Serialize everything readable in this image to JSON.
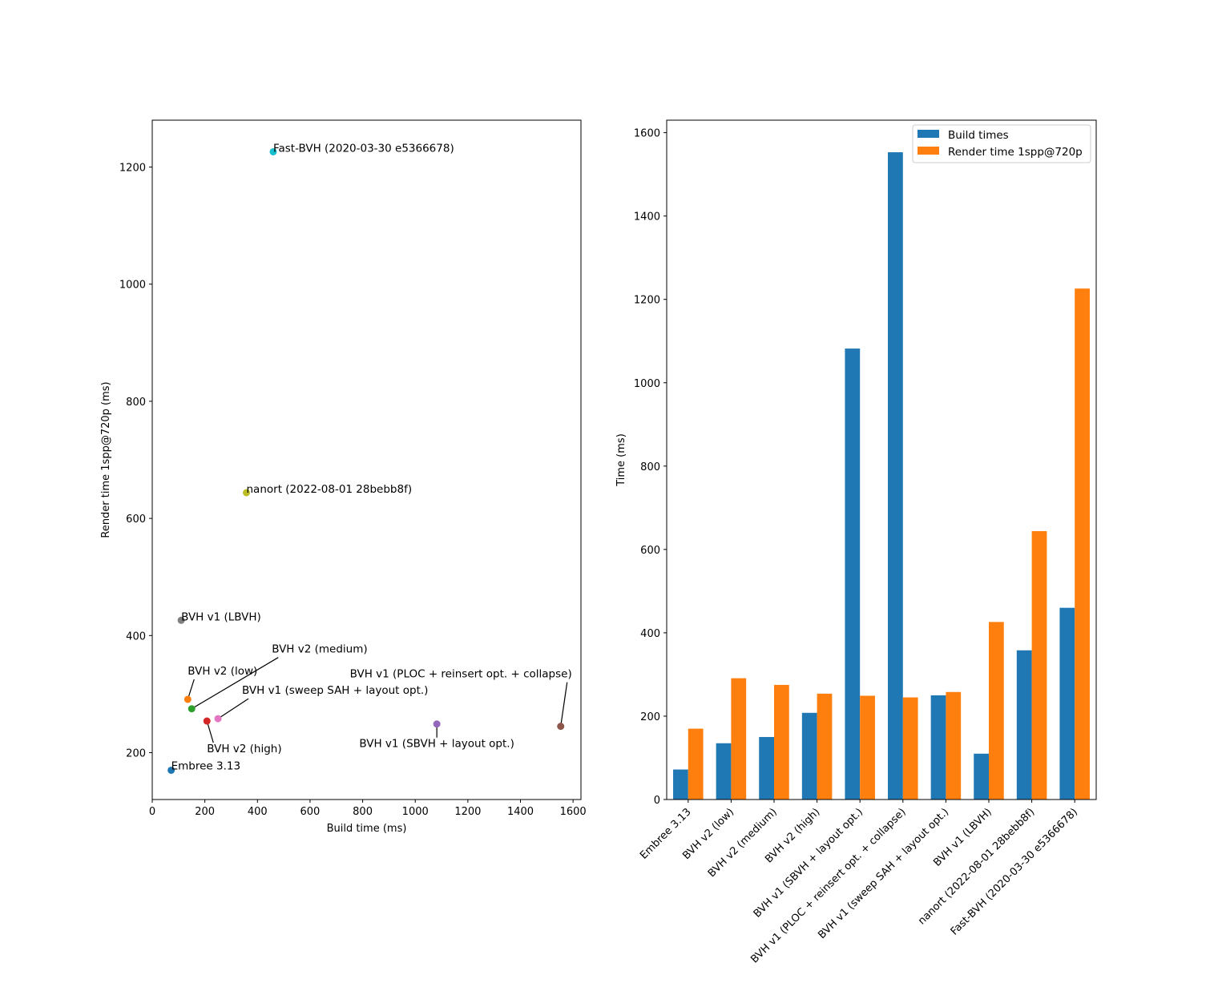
{
  "chart_data": [
    {
      "type": "scatter",
      "title": "",
      "xlabel": "Build time (ms)",
      "ylabel": "Render time 1spp@720p (ms)",
      "xlim": [
        0,
        1630
      ],
      "ylim": [
        120,
        1280
      ],
      "xticks": [
        0,
        200,
        400,
        600,
        800,
        1000,
        1200,
        1400,
        1600
      ],
      "yticks": [
        200,
        400,
        600,
        800,
        1000,
        1200
      ],
      "points": [
        {
          "name": "Embree 3.13",
          "x": 72,
          "y": 170,
          "color": "#1f77b4"
        },
        {
          "name": "BVH v2 (low)",
          "x": 135,
          "y": 291,
          "color": "#ff7f0e"
        },
        {
          "name": "BVH v2 (medium)",
          "x": 150,
          "y": 275,
          "color": "#2ca02c"
        },
        {
          "name": "BVH v2 (high)",
          "x": 208,
          "y": 254,
          "color": "#d62728"
        },
        {
          "name": "BVH v1 (SBVH + layout opt.)",
          "x": 1082,
          "y": 249,
          "color": "#9467bd"
        },
        {
          "name": "BVH v1 (PLOC + reinsert opt. + collapse)",
          "x": 1553,
          "y": 245,
          "color": "#8c564b"
        },
        {
          "name": "BVH v1 (sweep SAH + layout opt.)",
          "x": 250,
          "y": 258,
          "color": "#e377c2"
        },
        {
          "name": "BVH v1 (LBVH)",
          "x": 110,
          "y": 426,
          "color": "#7f7f7f"
        },
        {
          "name": "nanort (2022-08-01 28bebb8f)",
          "x": 358,
          "y": 644,
          "color": "#bcbd22"
        },
        {
          "name": "Fast-BVH (2020-03-30 e5366678)",
          "x": 460,
          "y": 1226,
          "color": "#17becf"
        }
      ]
    },
    {
      "type": "bar",
      "title": "",
      "xlabel": "",
      "ylabel": "Time (ms)",
      "ylim": [
        0,
        1630
      ],
      "yticks": [
        0,
        200,
        400,
        600,
        800,
        1000,
        1200,
        1400,
        1600
      ],
      "categories": [
        "Embree 3.13",
        "BVH v2 (low)",
        "BVH v2 (medium)",
        "BVH v2 (high)",
        "BVH v1 (SBVH + layout opt.)",
        "BVH v1 (PLOC + reinsert opt. + collapse)",
        "BVH v1 (sweep SAH + layout opt.)",
        "BVH v1 (LBVH)",
        "nanort (2022-08-01 28bebb8f)",
        "Fast-BVH (2020-03-30 e5366678)"
      ],
      "series": [
        {
          "name": "Build times",
          "color": "#1f77b4",
          "values": [
            72,
            135,
            150,
            208,
            1082,
            1553,
            250,
            110,
            358,
            460
          ]
        },
        {
          "name": "Render time 1spp@720p",
          "color": "#ff7f0e",
          "values": [
            170,
            291,
            275,
            254,
            249,
            245,
            258,
            426,
            644,
            1226
          ]
        }
      ],
      "legend": "top-right"
    }
  ]
}
